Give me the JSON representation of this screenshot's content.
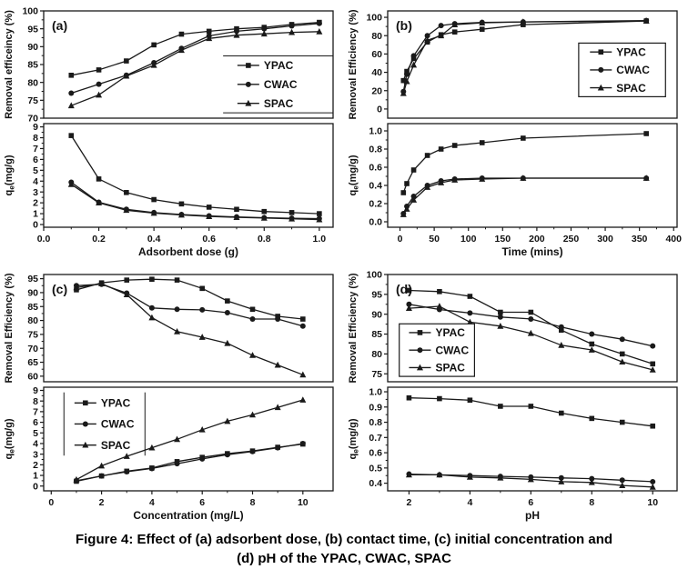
{
  "figure": {
    "caption_line1": "Figure 4: Effect of (a) adsorbent dose, (b) contact time, (c) initial concentration and",
    "caption_line2": "(d) pH of the YPAC, CWAC, SPAC"
  },
  "colors": {
    "line": "#1a1a1a",
    "frame": "#333333",
    "background": "#ffffff",
    "text": "#111111"
  },
  "chart_data": {
    "type": "line",
    "series_names": [
      "YPAC",
      "CWAC",
      "SPAC"
    ],
    "marker_shapes": {
      "YPAC": "square",
      "CWAC": "circle",
      "SPAC": "triangle"
    },
    "grid": false,
    "panels": [
      {
        "id": "a",
        "label": "(a)",
        "xlabel": "Adsorbent dose (g)",
        "x": [
          0.1,
          0.2,
          0.3,
          0.4,
          0.5,
          0.6,
          0.7,
          0.8,
          0.9,
          1.0
        ],
        "xlim": [
          0.0,
          1.05
        ],
        "xtick_values": [
          0.0,
          0.2,
          0.4,
          0.6,
          0.8,
          1.0
        ],
        "xtick_labels": [
          "0.0",
          "0.2",
          "0.4",
          "0.6",
          "0.8",
          "1.0"
        ],
        "top": {
          "ylabel": "Removal efficeincy (%)",
          "qe_label": false,
          "ylim": [
            70,
            100
          ],
          "ytick_values": [
            70,
            75,
            80,
            85,
            90,
            95,
            100
          ],
          "ytick_labels": [
            "70",
            "75",
            "80",
            "85",
            "90",
            "95",
            "100"
          ],
          "series": [
            {
              "name": "YPAC",
              "values": [
                82,
                83.5,
                86,
                90.5,
                93.5,
                94.3,
                95,
                95.4,
                96.2,
                96.8
              ]
            },
            {
              "name": "CWAC",
              "values": [
                77,
                79.5,
                82,
                85.5,
                89.5,
                93,
                94.3,
                95,
                95.8,
                96.5
              ]
            },
            {
              "name": "SPAC",
              "values": [
                73.5,
                76.5,
                81.8,
                84.8,
                89,
                92.3,
                93.2,
                93.6,
                94,
                94.2
              ]
            }
          ]
        },
        "bottom": {
          "ylabel": "qe(mg/g)",
          "qe_label": true,
          "ylim": [
            -0.25,
            9.3
          ],
          "ytick_values": [
            0,
            1,
            2,
            3,
            4,
            5,
            6,
            7,
            8,
            9
          ],
          "ytick_labels": [
            "0",
            "1",
            "2",
            "3",
            "4",
            "5",
            "6",
            "7",
            "8",
            "9"
          ],
          "series": [
            {
              "name": "YPAC",
              "values": [
                8.2,
                4.2,
                2.95,
                2.3,
                1.9,
                1.6,
                1.4,
                1.2,
                1.1,
                1.0
              ]
            },
            {
              "name": "CWAC",
              "values": [
                3.9,
                2.05,
                1.4,
                1.1,
                0.92,
                0.8,
                0.7,
                0.63,
                0.58,
                0.55
              ]
            },
            {
              "name": "SPAC",
              "values": [
                3.7,
                2.0,
                1.32,
                1.05,
                0.88,
                0.75,
                0.66,
                0.6,
                0.53,
                0.45
              ]
            }
          ]
        },
        "legend": {
          "subplot": "top",
          "border": "hlines",
          "x1": 0.62,
          "y1": 0.42,
          "x2": 1.0,
          "y2": 0.95
        }
      },
      {
        "id": "b",
        "label": "(b)",
        "xlabel": "Time (mins)",
        "x": [
          5,
          10,
          20,
          40,
          60,
          80,
          120,
          180,
          360
        ],
        "xlim": [
          -18,
          405
        ],
        "xtick_values": [
          0,
          50,
          100,
          150,
          200,
          250,
          300,
          350,
          400
        ],
        "xtick_labels": [
          "0",
          "50",
          "100",
          "150",
          "200",
          "250",
          "300",
          "350",
          "400"
        ],
        "top": {
          "ylabel": "Removal Efficiency (%)",
          "qe_label": false,
          "ylim": [
            -10,
            107
          ],
          "ytick_values": [
            0,
            20,
            40,
            60,
            80,
            100
          ],
          "ytick_labels": [
            "0",
            "20",
            "40",
            "60",
            "80",
            "100"
          ],
          "series": [
            {
              "name": "YPAC",
              "values": [
                31,
                41,
                55,
                73,
                81,
                84,
                87,
                92,
                96
              ]
            },
            {
              "name": "CWAC",
              "values": [
                19,
                38,
                58,
                80,
                91,
                93,
                94.5,
                95,
                96.5
              ]
            },
            {
              "name": "SPAC",
              "values": [
                17,
                30,
                48,
                75,
                80,
                92,
                94,
                95,
                96
              ]
            }
          ]
        },
        "bottom": {
          "ylabel": "qe(mg/g)",
          "qe_label": true,
          "ylim": [
            -0.06,
            1.08
          ],
          "ytick_values": [
            0.0,
            0.2,
            0.4,
            0.6,
            0.8,
            1.0
          ],
          "ytick_labels": [
            "0.0",
            "0.2",
            "0.4",
            "0.6",
            "0.8",
            "1.0"
          ],
          "series": [
            {
              "name": "YPAC",
              "values": [
                0.32,
                0.42,
                0.57,
                0.73,
                0.8,
                0.84,
                0.87,
                0.92,
                0.97
              ]
            },
            {
              "name": "CWAC",
              "values": [
                0.09,
                0.17,
                0.28,
                0.4,
                0.45,
                0.47,
                0.48,
                0.48,
                0.48
              ]
            },
            {
              "name": "SPAC",
              "values": [
                0.08,
                0.14,
                0.24,
                0.38,
                0.43,
                0.46,
                0.47,
                0.48,
                0.48
              ]
            }
          ]
        },
        "legend": {
          "subplot": "top",
          "border": "box",
          "x1": 0.66,
          "y1": 0.3,
          "x2": 0.96,
          "y2": 0.8
        }
      },
      {
        "id": "c",
        "label": "(c)",
        "xlabel": "Concentration (mg/L)",
        "x": [
          1,
          2,
          3,
          4,
          5,
          6,
          7,
          8,
          9,
          10
        ],
        "xlim": [
          -0.3,
          11.2
        ],
        "xtick_values": [
          0,
          2,
          4,
          6,
          8,
          10
        ],
        "xtick_labels": [
          "0",
          "2",
          "4",
          "6",
          "8",
          "10"
        ],
        "top": {
          "ylabel": "Removal Efficiency (%)",
          "qe_label": false,
          "ylim": [
            58,
            96.5
          ],
          "ytick_values": [
            60,
            65,
            70,
            75,
            80,
            85,
            90,
            95
          ],
          "ytick_labels": [
            "60",
            "65",
            "70",
            "75",
            "80",
            "85",
            "90",
            "95"
          ],
          "series": [
            {
              "name": "YPAC",
              "values": [
                91,
                93.5,
                94.5,
                94.8,
                94.5,
                91.5,
                87,
                84,
                81.5,
                80.5
              ]
            },
            {
              "name": "CWAC",
              "values": [
                92.5,
                93,
                89.8,
                84.5,
                84,
                83.8,
                82.8,
                80.5,
                80.5,
                78
              ]
            },
            {
              "name": "SPAC",
              "values": [
                91.8,
                93.2,
                89.3,
                81,
                76,
                74,
                71.8,
                67.5,
                64,
                60.5
              ]
            }
          ]
        },
        "bottom": {
          "ylabel": "qe(mg/g)",
          "qe_label": true,
          "ylim": [
            -0.45,
            9.3
          ],
          "ytick_values": [
            0,
            1,
            2,
            3,
            4,
            5,
            6,
            7,
            8,
            9
          ],
          "ytick_labels": [
            "0",
            "1",
            "2",
            "3",
            "4",
            "5",
            "6",
            "7",
            "8",
            "9"
          ],
          "series": [
            {
              "name": "YPAC",
              "values": [
                0.45,
                0.95,
                1.4,
                1.7,
                2.3,
                2.7,
                3.05,
                3.3,
                3.65,
                3.95
              ]
            },
            {
              "name": "CWAC",
              "values": [
                0.5,
                0.95,
                1.35,
                1.65,
                2.1,
                2.55,
                2.95,
                3.25,
                3.6,
                4.0
              ]
            },
            {
              "name": "SPAC",
              "values": [
                0.6,
                1.9,
                2.8,
                3.6,
                4.4,
                5.3,
                6.1,
                6.7,
                7.4,
                8.1
              ]
            }
          ]
        },
        "legend": {
          "subplot": "bottom",
          "border": "vlines",
          "x1": 0.07,
          "y1": 0.05,
          "x2": 0.35,
          "y2": 0.66
        }
      },
      {
        "id": "d",
        "label": "(d)",
        "xlabel": "pH",
        "x": [
          2,
          3,
          4,
          5,
          6,
          7,
          8,
          9,
          10
        ],
        "xlim": [
          1.3,
          10.8
        ],
        "xtick_values": [
          2,
          4,
          6,
          8,
          10
        ],
        "xtick_labels": [
          "2",
          "4",
          "6",
          "8",
          "10"
        ],
        "top": {
          "ylabel": "Removal Efficiency (%)",
          "qe_label": false,
          "ylim": [
            73,
            100
          ],
          "ytick_values": [
            75,
            80,
            85,
            90,
            95,
            100
          ],
          "ytick_labels": [
            "75",
            "80",
            "85",
            "90",
            "95",
            "100"
          ],
          "series": [
            {
              "name": "YPAC",
              "values": [
                96,
                95.7,
                94.5,
                90.5,
                90.5,
                86,
                82.5,
                80,
                77.5
              ]
            },
            {
              "name": "CWAC",
              "values": [
                92.5,
                91.2,
                90.3,
                89.3,
                88.8,
                86.8,
                85,
                83.7,
                82
              ]
            },
            {
              "name": "SPAC",
              "values": [
                91.5,
                92,
                88,
                87,
                85.2,
                82.2,
                81,
                78,
                76
              ]
            }
          ]
        },
        "bottom": {
          "ylabel": "qe(mg/g)",
          "qe_label": true,
          "ylim": [
            0.35,
            1.03
          ],
          "ytick_values": [
            0.4,
            0.5,
            0.6,
            0.7,
            0.8,
            0.9,
            1.0
          ],
          "ytick_labels": [
            "0.4",
            "0.5",
            "0.6",
            "0.7",
            "0.8",
            "0.9",
            "1.0"
          ],
          "series": [
            {
              "name": "YPAC",
              "values": [
                0.96,
                0.955,
                0.945,
                0.905,
                0.905,
                0.86,
                0.825,
                0.8,
                0.775
              ]
            },
            {
              "name": "CWAC",
              "values": [
                0.46,
                0.455,
                0.45,
                0.445,
                0.44,
                0.435,
                0.43,
                0.42,
                0.41
              ]
            },
            {
              "name": "SPAC",
              "values": [
                0.455,
                0.455,
                0.44,
                0.435,
                0.425,
                0.41,
                0.405,
                0.385,
                0.375
              ]
            }
          ]
        },
        "legend": {
          "subplot": "top",
          "border": "box",
          "x1": 0.04,
          "y1": 0.46,
          "x2": 0.3,
          "y2": 0.95
        }
      }
    ]
  }
}
